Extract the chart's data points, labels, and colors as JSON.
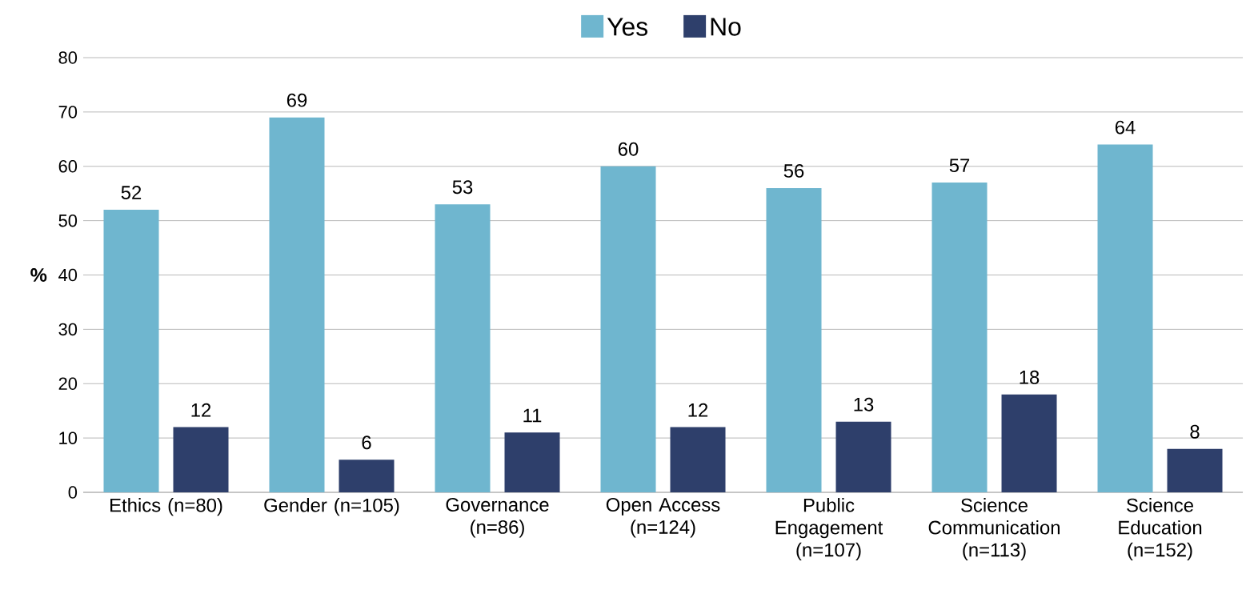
{
  "chart_data": {
    "type": "bar",
    "categories": [
      "Ethics (n=80)",
      "Gender (n=105)",
      "Governance (n=86)",
      "Open Access (n=124)",
      "Public Engagement (n=107)",
      "Science Communication (n=113)",
      "Science Education (n=152)"
    ],
    "series": [
      {
        "name": "Yes",
        "color": "#6fb6cf",
        "values": [
          52,
          69,
          53,
          60,
          56,
          57,
          64
        ]
      },
      {
        "name": "No",
        "color": "#2e3f6b",
        "values": [
          12,
          6,
          11,
          12,
          13,
          18,
          8
        ]
      }
    ],
    "ylabel": "%",
    "ylim": [
      0,
      80
    ],
    "yticks": [
      0,
      10,
      20,
      30,
      40,
      50,
      60,
      70,
      80
    ],
    "grid": "y",
    "legend": "top",
    "data_labels": true
  }
}
